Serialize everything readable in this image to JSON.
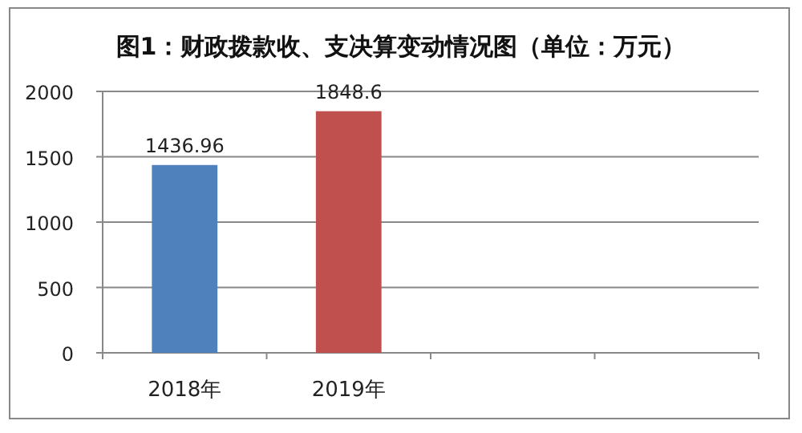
{
  "chart_data": {
    "type": "bar",
    "title": "图1：财政拨款收、支决算变动情况图（单位：万元）",
    "categories": [
      "2018年",
      "2019年",
      null,
      null
    ],
    "values": [
      1436.96,
      1848.6,
      null,
      null
    ],
    "colors": [
      "#4f81bd",
      "#c0504d",
      null,
      null
    ],
    "ylim": [
      0,
      2000
    ],
    "yticks": [
      0,
      500,
      1000,
      1500,
      2000
    ],
    "grid": "y",
    "data_labels": true
  }
}
